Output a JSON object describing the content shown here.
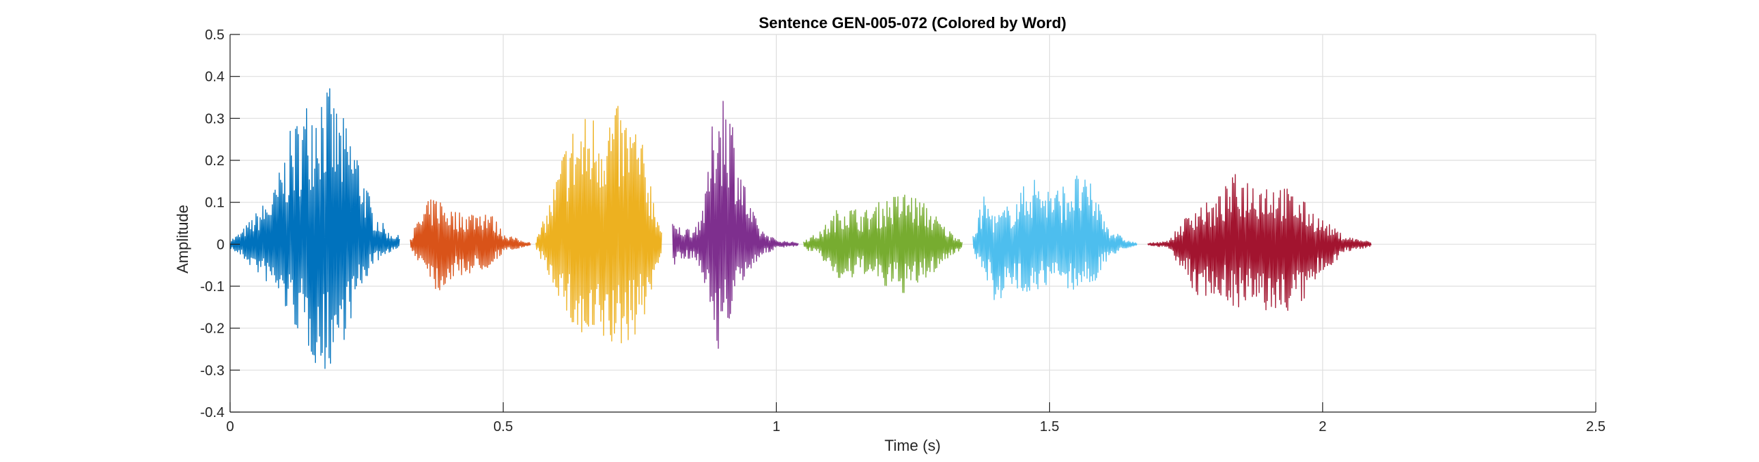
{
  "chart_data": {
    "type": "line",
    "title": "Sentence GEN-005-072 (Colored by Word)",
    "xlabel": "Time (s)",
    "ylabel": "Amplitude",
    "xlim": [
      0,
      2.5
    ],
    "ylim": [
      -0.4,
      0.5
    ],
    "xticks": [
      0,
      0.5,
      1,
      1.5,
      2,
      2.5
    ],
    "xtick_labels": [
      "0",
      "0.5",
      "1",
      "1.5",
      "2",
      "2.5"
    ],
    "yticks": [
      -0.4,
      -0.3,
      -0.2,
      -0.1,
      0,
      0.1,
      0.2,
      0.3,
      0.4,
      0.5
    ],
    "ytick_labels": [
      "-0.4",
      "-0.3",
      "-0.2",
      "-0.1",
      "0",
      "0.1",
      "0.2",
      "0.3",
      "0.4",
      "0.5"
    ],
    "grid": true,
    "legend": "none",
    "series": [
      {
        "start": 0.0,
        "end": 0.31,
        "color": "#0072BD",
        "env": [
          [
            0.0,
            0.01,
            0.01
          ],
          [
            0.02,
            0.03,
            0.03
          ],
          [
            0.05,
            0.08,
            0.07
          ],
          [
            0.08,
            0.13,
            0.11
          ],
          [
            0.11,
            0.27,
            0.18
          ],
          [
            0.14,
            0.35,
            0.25
          ],
          [
            0.17,
            0.41,
            0.32
          ],
          [
            0.2,
            0.32,
            0.26
          ],
          [
            0.23,
            0.25,
            0.15
          ],
          [
            0.26,
            0.09,
            0.05
          ],
          [
            0.29,
            0.03,
            0.02
          ],
          [
            0.31,
            0.02,
            0.01
          ]
        ]
      },
      {
        "start": 0.33,
        "end": 0.55,
        "color": "#D95319",
        "env": [
          [
            0.33,
            0.02,
            0.02
          ],
          [
            0.36,
            0.1,
            0.06
          ],
          [
            0.38,
            0.12,
            0.12
          ],
          [
            0.41,
            0.08,
            0.08
          ],
          [
            0.44,
            0.08,
            0.07
          ],
          [
            0.47,
            0.09,
            0.06
          ],
          [
            0.5,
            0.03,
            0.02
          ],
          [
            0.53,
            0.01,
            0.01
          ],
          [
            0.55,
            0.005,
            0.005
          ]
        ]
      },
      {
        "start": 0.56,
        "end": 0.79,
        "color": "#EDB120",
        "env": [
          [
            0.56,
            0.01,
            0.01
          ],
          [
            0.58,
            0.08,
            0.07
          ],
          [
            0.6,
            0.18,
            0.12
          ],
          [
            0.62,
            0.28,
            0.19
          ],
          [
            0.65,
            0.31,
            0.26
          ],
          [
            0.68,
            0.33,
            0.24
          ],
          [
            0.71,
            0.33,
            0.26
          ],
          [
            0.74,
            0.3,
            0.22
          ],
          [
            0.76,
            0.22,
            0.17
          ],
          [
            0.78,
            0.1,
            0.08
          ],
          [
            0.79,
            0.03,
            0.02
          ]
        ]
      },
      {
        "start": 0.81,
        "end": 1.04,
        "color": "#7E2F8E",
        "env": [
          [
            0.81,
            0.05,
            0.05
          ],
          [
            0.83,
            0.04,
            0.04
          ],
          [
            0.85,
            0.04,
            0.03
          ],
          [
            0.87,
            0.12,
            0.1
          ],
          [
            0.89,
            0.38,
            0.26
          ],
          [
            0.91,
            0.39,
            0.2
          ],
          [
            0.93,
            0.23,
            0.13
          ],
          [
            0.95,
            0.1,
            0.07
          ],
          [
            0.97,
            0.04,
            0.03
          ],
          [
            1.0,
            0.01,
            0.01
          ],
          [
            1.04,
            0.004,
            0.004
          ]
        ]
      },
      {
        "start": 1.05,
        "end": 1.34,
        "color": "#77AC30",
        "env": [
          [
            1.05,
            0.01,
            0.01
          ],
          [
            1.08,
            0.03,
            0.03
          ],
          [
            1.12,
            0.1,
            0.1
          ],
          [
            1.16,
            0.08,
            0.07
          ],
          [
            1.2,
            0.11,
            0.11
          ],
          [
            1.24,
            0.13,
            0.12
          ],
          [
            1.28,
            0.09,
            0.08
          ],
          [
            1.31,
            0.04,
            0.04
          ],
          [
            1.34,
            0.01,
            0.01
          ]
        ]
      },
      {
        "start": 1.36,
        "end": 1.66,
        "color": "#4DBEEE",
        "env": [
          [
            1.36,
            0.02,
            0.02
          ],
          [
            1.38,
            0.12,
            0.07
          ],
          [
            1.4,
            0.07,
            0.14
          ],
          [
            1.43,
            0.1,
            0.12
          ],
          [
            1.47,
            0.17,
            0.11
          ],
          [
            1.51,
            0.13,
            0.1
          ],
          [
            1.55,
            0.17,
            0.11
          ],
          [
            1.58,
            0.14,
            0.1
          ],
          [
            1.61,
            0.04,
            0.03
          ],
          [
            1.64,
            0.01,
            0.01
          ],
          [
            1.66,
            0.003,
            0.003
          ]
        ]
      },
      {
        "start": 1.68,
        "end": 2.09,
        "color": "#A2142F",
        "env": [
          [
            1.68,
            0.002,
            0.002
          ],
          [
            1.72,
            0.01,
            0.01
          ],
          [
            1.74,
            0.05,
            0.06
          ],
          [
            1.77,
            0.1,
            0.13
          ],
          [
            1.8,
            0.1,
            0.12
          ],
          [
            1.84,
            0.17,
            0.15
          ],
          [
            1.88,
            0.16,
            0.16
          ],
          [
            1.92,
            0.15,
            0.17
          ],
          [
            1.96,
            0.11,
            0.15
          ],
          [
            2.0,
            0.06,
            0.07
          ],
          [
            2.04,
            0.02,
            0.02
          ],
          [
            2.09,
            0.005,
            0.005
          ]
        ]
      }
    ]
  }
}
